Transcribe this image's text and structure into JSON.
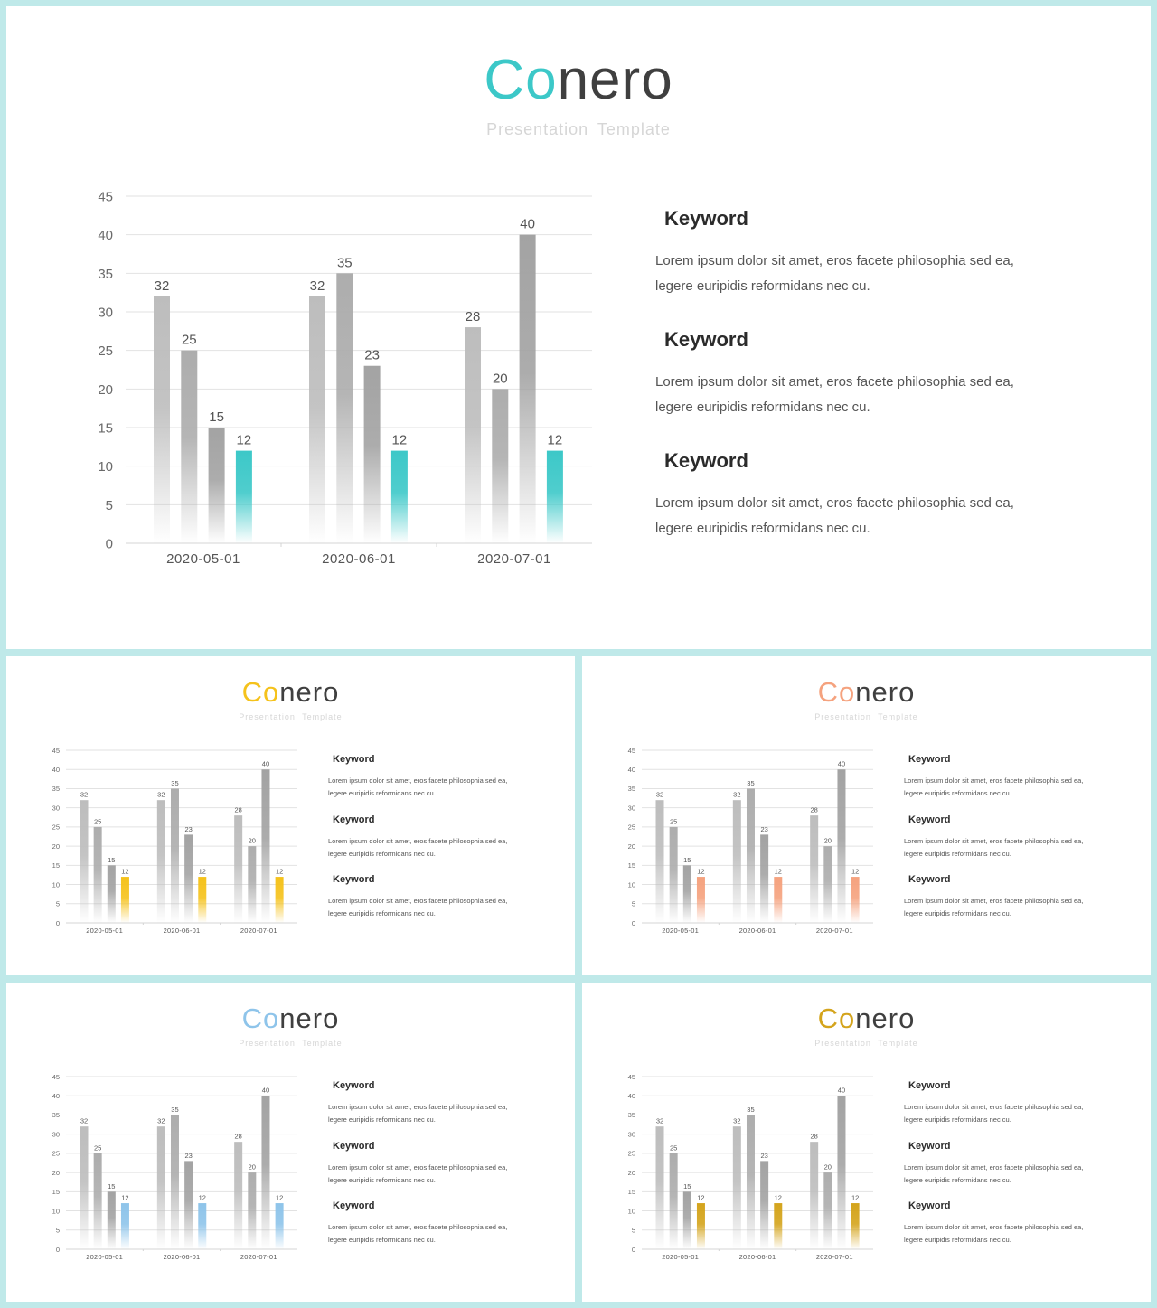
{
  "slides": [
    {
      "brand_prefix": "Co",
      "brand_suffix": "nero",
      "subtitle": "Presentation  Template",
      "accent": "#3cc8c8",
      "keywords": [
        {
          "heading": "Keyword",
          "line1": "Lorem ipsum dolor sit amet, eros facete philosophia sed ea,",
          "line2": "legere euripidis reformidans nec cu."
        },
        {
          "heading": "Keyword",
          "line1": "Lorem ipsum dolor sit amet, eros facete philosophia sed ea,",
          "line2": "legere euripidis reformidans nec cu."
        },
        {
          "heading": "Keyword",
          "line1": "Lorem ipsum dolor sit amet, eros facete philosophia sed ea,",
          "line2": "legere euripidis reformidans nec cu."
        }
      ]
    },
    {
      "brand_prefix": "Co",
      "brand_suffix": "nero",
      "subtitle": "Presentation  Template",
      "accent": "#f5c21b",
      "keywords": [
        {
          "heading": "Keyword",
          "line1": "Lorem ipsum dolor sit amet, eros facete philosophia sed ea,",
          "line2": "legere euripidis reformidans nec cu."
        },
        {
          "heading": "Keyword",
          "line1": "Lorem ipsum dolor sit amet, eros facete philosophia sed ea,",
          "line2": "legere euripidis reformidans nec cu."
        },
        {
          "heading": "Keyword",
          "line1": "Lorem ipsum dolor sit amet, eros facete philosophia sed ea,",
          "line2": "legere euripidis reformidans nec cu."
        }
      ]
    },
    {
      "brand_prefix": "Co",
      "brand_suffix": "nero",
      "subtitle": "Presentation  Template",
      "accent": "#f5a27e",
      "keywords": [
        {
          "heading": "Keyword",
          "line1": "Lorem ipsum dolor sit amet, eros facete philosophia sed ea,",
          "line2": "legere euripidis reformidans nec cu."
        },
        {
          "heading": "Keyword",
          "line1": "Lorem ipsum dolor sit amet, eros facete philosophia sed ea,",
          "line2": "legere euripidis reformidans nec cu."
        },
        {
          "heading": "Keyword",
          "line1": "Lorem ipsum dolor sit amet, eros facete philosophia sed ea,",
          "line2": "legere euripidis reformidans nec cu."
        }
      ]
    },
    {
      "brand_prefix": "Co",
      "brand_suffix": "nero",
      "subtitle": "Presentation  Template",
      "accent": "#8ec4ea",
      "keywords": [
        {
          "heading": "Keyword",
          "line1": "Lorem ipsum dolor sit amet, eros facete philosophia sed ea,",
          "line2": "legere euripidis reformidans nec cu."
        },
        {
          "heading": "Keyword",
          "line1": "Lorem ipsum dolor sit amet, eros facete philosophia sed ea,",
          "line2": "legere euripidis reformidans nec cu."
        },
        {
          "heading": "Keyword",
          "line1": "Lorem ipsum dolor sit amet, eros facete philosophia sed ea,",
          "line2": "legere euripidis reformidans nec cu."
        }
      ]
    },
    {
      "brand_prefix": "Co",
      "brand_suffix": "nero",
      "subtitle": "Presentation  Template",
      "accent": "#d4a41c",
      "keywords": [
        {
          "heading": "Keyword",
          "line1": "Lorem ipsum dolor sit amet, eros facete philosophia sed ea,",
          "line2": "legere euripidis reformidans nec cu."
        },
        {
          "heading": "Keyword",
          "line1": "Lorem ipsum dolor sit amet, eros facete philosophia sed ea,",
          "line2": "legere euripidis reformidans nec cu."
        },
        {
          "heading": "Keyword",
          "line1": "Lorem ipsum dolor sit amet, eros facete philosophia sed ea,",
          "line2": "legere euripidis reformidans nec cu."
        }
      ]
    }
  ],
  "chart_data": {
    "type": "bar",
    "categories": [
      "2020-05-01",
      "2020-06-01",
      "2020-07-01"
    ],
    "series": [
      {
        "values": [
          32,
          32,
          28
        ]
      },
      {
        "values": [
          25,
          35,
          20
        ]
      },
      {
        "values": [
          15,
          23,
          40
        ]
      },
      {
        "values": [
          12,
          12,
          12
        ]
      }
    ],
    "ylim": [
      0,
      45
    ],
    "yticks": [
      0,
      5,
      10,
      15,
      20,
      25,
      30,
      35,
      40,
      45
    ],
    "grid": true,
    "data_labels": true,
    "title": "",
    "xlabel": "",
    "ylabel": "",
    "series_colors": [
      "#bdbdbd",
      "#adadad",
      "#a3a3a3",
      "accent"
    ]
  }
}
